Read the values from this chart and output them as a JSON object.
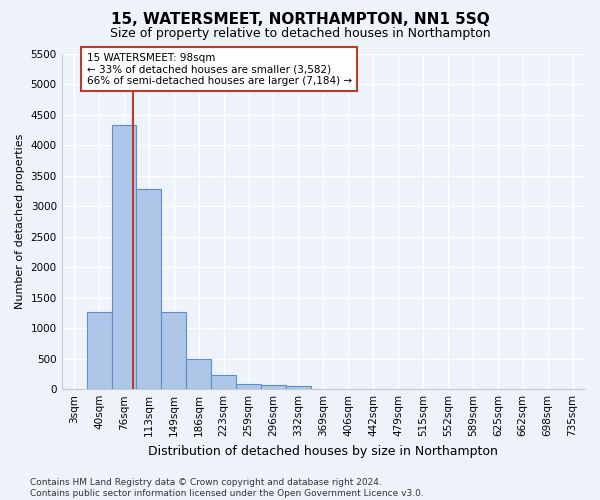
{
  "title": "15, WATERSMEET, NORTHAMPTON, NN1 5SQ",
  "subtitle": "Size of property relative to detached houses in Northampton",
  "xlabel": "Distribution of detached houses by size in Northampton",
  "ylabel": "Number of detached properties",
  "bar_labels": [
    "3sqm",
    "40sqm",
    "76sqm",
    "113sqm",
    "149sqm",
    "186sqm",
    "223sqm",
    "259sqm",
    "296sqm",
    "332sqm",
    "369sqm",
    "406sqm",
    "442sqm",
    "479sqm",
    "515sqm",
    "552sqm",
    "589sqm",
    "625sqm",
    "662sqm",
    "698sqm",
    "735sqm"
  ],
  "bar_values": [
    0,
    1270,
    4330,
    3290,
    1270,
    490,
    230,
    90,
    65,
    60,
    0,
    0,
    0,
    0,
    0,
    0,
    0,
    0,
    0,
    0,
    0
  ],
  "bar_color": "#aec6e8",
  "bar_edge_color": "#5b8fc9",
  "vline_x": 2.37,
  "vline_color": "#c0392b",
  "annotation_text": "15 WATERSMEET: 98sqm\n← 33% of detached houses are smaller (3,582)\n66% of semi-detached houses are larger (7,184) →",
  "annotation_box_color": "#ffffff",
  "annotation_box_edge": "#c0392b",
  "ylim": [
    0,
    5500
  ],
  "yticks": [
    0,
    500,
    1000,
    1500,
    2000,
    2500,
    3000,
    3500,
    4000,
    4500,
    5000,
    5500
  ],
  "background_color": "#eef2f9",
  "grid_color": "#ffffff",
  "footer": "Contains HM Land Registry data © Crown copyright and database right 2024.\nContains public sector information licensed under the Open Government Licence v3.0.",
  "title_fontsize": 11,
  "subtitle_fontsize": 9,
  "xlabel_fontsize": 9,
  "ylabel_fontsize": 8,
  "tick_fontsize": 7.5,
  "footer_fontsize": 6.5
}
